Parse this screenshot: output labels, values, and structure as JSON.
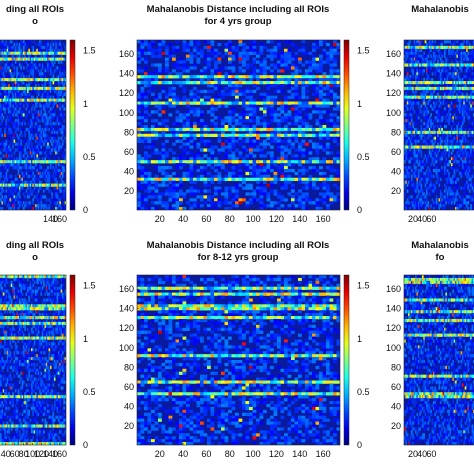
{
  "chart_data": [
    {
      "id": "top-left",
      "type": "heatmap",
      "title_lines": [
        "ding all ROIs",
        "o"
      ],
      "x_ticks": [
        140,
        160
      ],
      "y_ticks": [],
      "colorbar_ticks": [
        "1.5",
        "1",
        "0.5",
        "0"
      ],
      "colorbar_range": [
        0,
        1.6
      ],
      "matrix_size": 174,
      "seed": 11
    },
    {
      "id": "top-center",
      "type": "heatmap",
      "title_lines": [
        "Mahalanobis Distance including all ROIs",
        "for 4 yrs group"
      ],
      "x_ticks": [
        20,
        40,
        60,
        80,
        100,
        120,
        140,
        160
      ],
      "y_ticks": [
        20,
        40,
        60,
        80,
        100,
        120,
        140,
        160
      ],
      "colorbar_ticks": [
        "1.5",
        "1",
        "0.5",
        "0"
      ],
      "colorbar_range": [
        0,
        1.6
      ],
      "matrix_size": 174,
      "seed": 23
    },
    {
      "id": "top-right",
      "type": "heatmap",
      "title_lines": [
        "Mahalanobis",
        ""
      ],
      "x_ticks": [
        20,
        40,
        60
      ],
      "y_ticks": [
        20,
        40,
        60,
        80,
        100,
        120,
        140,
        160
      ],
      "colorbar_ticks": [],
      "colorbar_range": [
        0,
        1.6
      ],
      "matrix_size": 174,
      "seed": 37
    },
    {
      "id": "bottom-left",
      "type": "heatmap",
      "title_lines": [
        "ding all ROIs",
        "o"
      ],
      "x_ticks": [
        40,
        60,
        80,
        100,
        120,
        140,
        160
      ],
      "y_ticks": [],
      "colorbar_ticks": [
        "1.5",
        "1",
        "0.5",
        "0"
      ],
      "colorbar_range": [
        0,
        1.6
      ],
      "matrix_size": 174,
      "seed": 41
    },
    {
      "id": "bottom-center",
      "type": "heatmap",
      "title_lines": [
        "Mahalanobis Distance including all ROIs",
        "for 8-12 yrs group"
      ],
      "x_ticks": [
        20,
        40,
        60,
        80,
        100,
        120,
        140,
        160
      ],
      "y_ticks": [
        20,
        40,
        60,
        80,
        100,
        120,
        140,
        160
      ],
      "colorbar_ticks": [
        "1.5",
        "1",
        "0.5",
        "0"
      ],
      "colorbar_range": [
        0,
        1.6
      ],
      "matrix_size": 174,
      "seed": 53
    },
    {
      "id": "bottom-right",
      "type": "heatmap",
      "title_lines": [
        "Mahalanobis",
        "fo"
      ],
      "x_ticks": [
        20,
        40,
        60
      ],
      "y_ticks": [
        20,
        40,
        60,
        80,
        100,
        120,
        140,
        160
      ],
      "colorbar_ticks": [],
      "colorbar_range": [
        0,
        1.6
      ],
      "matrix_size": 174,
      "seed": 67
    }
  ]
}
